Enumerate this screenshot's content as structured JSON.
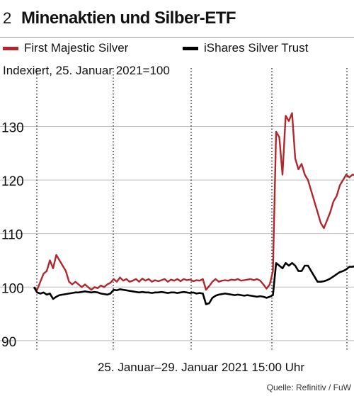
{
  "figure_number": "2",
  "title": "Minenaktien und Silber-ETF",
  "subtitle": "Indexiert, 25. Januar 2021=100",
  "source": "Quelle: Refinitiv / FuW",
  "colors": {
    "first_majestic": "#b0282d",
    "ishares": "#000000",
    "grid": "#000000"
  },
  "chart_data": {
    "type": "line",
    "title": "Minenaktien und Silber-ETF",
    "ylabel": "Indexiert, 25. Januar 2021=100",
    "xlabel": "25. Januar–29. Januar 2021 15:00 Uhr",
    "ylim": [
      88,
      138
    ],
    "xlim": [
      0,
      100
    ],
    "y_ticks": [
      90,
      100,
      110,
      120,
      130
    ],
    "grid": "dotted vertical",
    "legend_placement": "top",
    "series": [
      {
        "name": "First Majestic Silver",
        "color": "#b0282d",
        "points": [
          [
            0,
            100
          ],
          [
            1,
            99.5
          ],
          [
            2,
            101
          ],
          [
            3,
            102.5
          ],
          [
            4,
            103
          ],
          [
            5,
            105
          ],
          [
            6,
            103.5
          ],
          [
            7,
            106
          ],
          [
            8,
            105
          ],
          [
            9,
            104
          ],
          [
            10,
            103
          ],
          [
            11,
            101
          ],
          [
            12,
            100.5
          ],
          [
            13,
            101
          ],
          [
            14,
            100.5
          ],
          [
            15,
            100
          ],
          [
            16,
            100.5
          ],
          [
            17,
            100
          ],
          [
            18,
            99.5
          ],
          [
            19,
            100
          ],
          [
            20,
            99.8
          ],
          [
            21,
            100.3
          ],
          [
            22,
            100
          ],
          [
            23,
            100.5
          ],
          [
            24,
            100.8
          ],
          [
            25,
            101.5
          ],
          [
            26,
            101
          ],
          [
            27,
            101.8
          ],
          [
            28,
            101.2
          ],
          [
            29,
            101.5
          ],
          [
            30,
            101
          ],
          [
            31,
            101.2
          ],
          [
            32,
            101.5
          ],
          [
            33,
            101
          ],
          [
            34,
            101.6
          ],
          [
            35,
            101.2
          ],
          [
            36,
            101.5
          ],
          [
            37,
            101
          ],
          [
            38,
            101.3
          ],
          [
            39,
            101.1
          ],
          [
            40,
            101.3
          ],
          [
            41,
            101.5
          ],
          [
            42,
            101
          ],
          [
            43,
            101.4
          ],
          [
            44,
            101.2
          ],
          [
            45,
            101.5
          ],
          [
            46,
            101.1
          ],
          [
            47,
            101.5
          ],
          [
            48,
            101.3
          ],
          [
            49,
            101.4
          ],
          [
            50,
            101.1
          ],
          [
            51,
            101.3
          ],
          [
            52,
            101.2
          ],
          [
            53,
            101.5
          ],
          [
            54,
            99.5
          ],
          [
            55,
            100.2
          ],
          [
            56,
            101
          ],
          [
            57,
            101.5
          ],
          [
            58,
            101
          ],
          [
            59,
            101.2
          ],
          [
            60,
            101.3
          ],
          [
            61,
            101.2
          ],
          [
            62,
            101.4
          ],
          [
            63,
            101.3
          ],
          [
            64,
            101.5
          ],
          [
            65,
            101.2
          ],
          [
            66,
            101.3
          ],
          [
            67,
            101.4
          ],
          [
            68,
            101.5
          ],
          [
            69,
            101.3
          ],
          [
            70,
            101.5
          ],
          [
            71,
            101.2
          ],
          [
            72,
            100.5
          ],
          [
            73,
            99.7
          ],
          [
            74,
            100.5
          ],
          [
            75,
            103
          ],
          [
            76,
            129
          ],
          [
            77,
            128
          ],
          [
            78,
            121
          ],
          [
            79,
            132
          ],
          [
            80,
            131
          ],
          [
            81,
            132.5
          ],
          [
            82,
            124
          ],
          [
            83,
            122
          ],
          [
            84,
            123
          ],
          [
            85,
            121
          ],
          [
            86,
            120
          ],
          [
            87,
            118
          ],
          [
            88,
            116
          ],
          [
            89,
            114
          ],
          [
            90,
            112
          ],
          [
            91,
            111
          ],
          [
            92,
            112.5
          ],
          [
            93,
            114
          ],
          [
            94,
            116
          ],
          [
            95,
            117
          ],
          [
            96,
            119
          ],
          [
            97,
            120
          ],
          [
            98,
            121
          ],
          [
            99,
            120.5
          ],
          [
            100,
            121
          ],
          [
            101,
            120.8
          ]
        ]
      },
      {
        "name": "iShares Silver Trust",
        "color": "#000000",
        "points": [
          [
            0,
            100
          ],
          [
            1,
            99
          ],
          [
            2,
            98.8
          ],
          [
            3,
            99
          ],
          [
            4,
            98.6
          ],
          [
            5,
            98.8
          ],
          [
            6,
            97.8
          ],
          [
            7,
            98.2
          ],
          [
            8,
            98.5
          ],
          [
            9,
            98.6
          ],
          [
            10,
            98.7
          ],
          [
            11,
            98.8
          ],
          [
            12,
            98.9
          ],
          [
            13,
            99
          ],
          [
            14,
            99
          ],
          [
            15,
            99.1
          ],
          [
            16,
            99.2
          ],
          [
            17,
            99.1
          ],
          [
            18,
            99
          ],
          [
            19,
            99.1
          ],
          [
            20,
            99
          ],
          [
            21,
            98.8
          ],
          [
            22,
            98.7
          ],
          [
            23,
            98.6
          ],
          [
            24,
            98.8
          ],
          [
            25,
            99.5
          ],
          [
            26,
            99.4
          ],
          [
            27,
            99.6
          ],
          [
            28,
            99.5
          ],
          [
            29,
            99.4
          ],
          [
            30,
            99.3
          ],
          [
            31,
            99.2
          ],
          [
            32,
            99.1
          ],
          [
            33,
            99
          ],
          [
            34,
            99.1
          ],
          [
            35,
            99
          ],
          [
            36,
            99
          ],
          [
            37,
            98.9
          ],
          [
            38,
            99
          ],
          [
            39,
            99
          ],
          [
            40,
            99.1
          ],
          [
            41,
            99
          ],
          [
            42,
            98.9
          ],
          [
            43,
            99
          ],
          [
            44,
            99
          ],
          [
            45,
            98.9
          ],
          [
            46,
            99
          ],
          [
            47,
            99.1
          ],
          [
            48,
            99
          ],
          [
            49,
            98.9
          ],
          [
            50,
            99
          ],
          [
            51,
            98.8
          ],
          [
            52,
            98.9
          ],
          [
            53,
            98.8
          ],
          [
            54,
            96.8
          ],
          [
            55,
            97
          ],
          [
            56,
            98
          ],
          [
            57,
            98.4
          ],
          [
            58,
            98.6
          ],
          [
            59,
            98.7
          ],
          [
            60,
            98.8
          ],
          [
            61,
            98.7
          ],
          [
            62,
            98.6
          ],
          [
            63,
            98.5
          ],
          [
            64,
            98.6
          ],
          [
            65,
            98.5
          ],
          [
            66,
            98.4
          ],
          [
            67,
            98.5
          ],
          [
            68,
            98.4
          ],
          [
            69,
            98.3
          ],
          [
            70,
            98.2
          ],
          [
            71,
            98.3
          ],
          [
            72,
            98.2
          ],
          [
            73,
            98
          ],
          [
            74,
            98.2
          ],
          [
            75,
            98.5
          ],
          [
            76,
            104.5
          ],
          [
            77,
            104
          ],
          [
            78,
            103.5
          ],
          [
            79,
            104.5
          ],
          [
            80,
            104
          ],
          [
            81,
            104.5
          ],
          [
            82,
            104
          ],
          [
            83,
            103
          ],
          [
            84,
            103
          ],
          [
            85,
            104
          ],
          [
            86,
            104
          ],
          [
            87,
            103
          ],
          [
            88,
            102
          ],
          [
            89,
            101
          ],
          [
            90,
            101
          ],
          [
            91,
            101.1
          ],
          [
            92,
            101.3
          ],
          [
            93,
            101.6
          ],
          [
            94,
            102
          ],
          [
            95,
            102.4
          ],
          [
            96,
            102.8
          ],
          [
            97,
            103
          ],
          [
            98,
            103.3
          ],
          [
            99,
            103.8
          ],
          [
            100,
            103.8
          ],
          [
            101,
            104
          ]
        ]
      }
    ]
  }
}
